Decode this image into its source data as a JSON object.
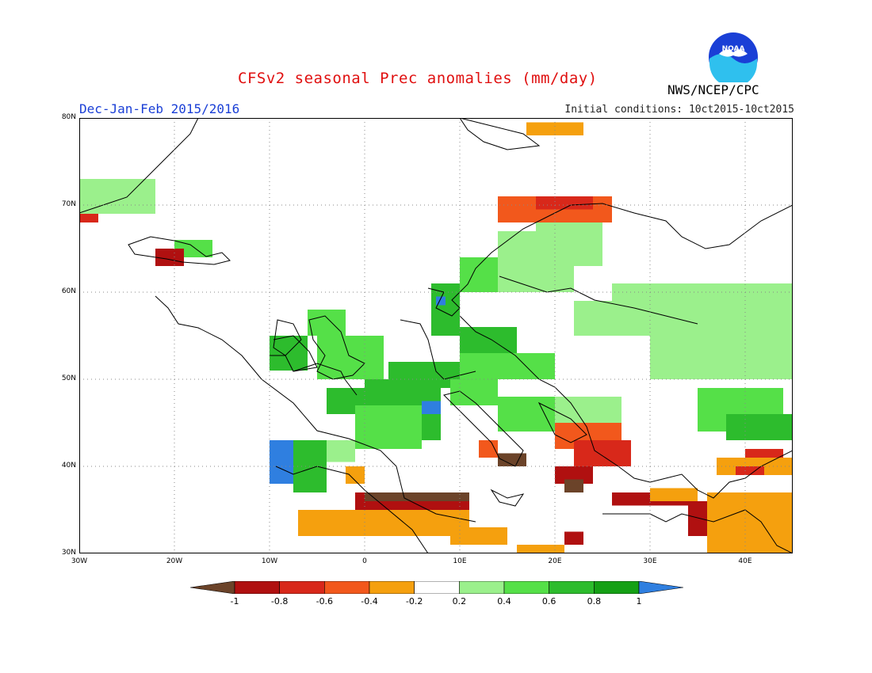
{
  "title": "CFSv2 seasonal Prec anomalies (mm/day)",
  "period": "Dec-Jan-Feb 2015/2016",
  "initial_conditions": "Initial conditions: 10ct2015-10ct2015",
  "agency": "NWS/NCEP/CPC",
  "logo_text": "NOAA",
  "map": {
    "lon_range": [
      -30,
      45
    ],
    "lat_range": [
      30,
      80
    ],
    "lat_labels": [
      {
        "value": 80,
        "text": "80N"
      },
      {
        "value": 70,
        "text": "70N"
      },
      {
        "value": 60,
        "text": "60N"
      },
      {
        "value": 50,
        "text": "50N"
      },
      {
        "value": 40,
        "text": "40N"
      },
      {
        "value": 30,
        "text": "30N"
      }
    ],
    "lon_labels": [
      {
        "value": -30,
        "text": "30W"
      },
      {
        "value": -20,
        "text": "20W"
      },
      {
        "value": -10,
        "text": "10W"
      },
      {
        "value": 0,
        "text": "0"
      },
      {
        "value": 10,
        "text": "10E"
      },
      {
        "value": 20,
        "text": "20E"
      },
      {
        "value": 30,
        "text": "30E"
      },
      {
        "value": 40,
        "text": "40E"
      }
    ]
  },
  "colorbar": {
    "labels": [
      "-1",
      "-0.8",
      "-0.6",
      "-0.4",
      "-0.2",
      "0.2",
      "0.4",
      "0.6",
      "0.8",
      "1"
    ],
    "colors": [
      "#6b4329",
      "#b01010",
      "#d8281a",
      "#f2581c",
      "#f5a00e",
      "#ffffff",
      "#9bf08c",
      "#55e048",
      "#2dbc2d",
      "#15a015",
      "#2f7fe0"
    ]
  },
  "chart_data": {
    "type": "heatmap",
    "variable": "Prec anomalies (mm/day)",
    "regions": [
      {
        "lon": [
          -10,
          -7.5
        ],
        "lat": [
          38,
          43
        ],
        "value": 1.1
      },
      {
        "lon": [
          -7.5,
          -4
        ],
        "lat": [
          37,
          43
        ],
        "value": 0.7
      },
      {
        "lon": [
          -4,
          -1
        ],
        "lat": [
          40.5,
          43
        ],
        "value": 0.3
      },
      {
        "lon": [
          -4,
          0
        ],
        "lat": [
          46,
          49
        ],
        "value": 0.6
      },
      {
        "lon": [
          0,
          8
        ],
        "lat": [
          43,
          50
        ],
        "value": 0.7
      },
      {
        "lon": [
          -1,
          6
        ],
        "lat": [
          42,
          47
        ],
        "value": 0.5
      },
      {
        "lon": [
          2.5,
          10
        ],
        "lat": [
          49,
          52
        ],
        "value": 0.6
      },
      {
        "lon": [
          6,
          8
        ],
        "lat": [
          46,
          47.5
        ],
        "value": 1.1
      },
      {
        "lon": [
          -5,
          2
        ],
        "lat": [
          50,
          55
        ],
        "value": 0.5
      },
      {
        "lon": [
          -10,
          -6
        ],
        "lat": [
          51,
          55
        ],
        "value": 0.6
      },
      {
        "lon": [
          -6,
          -2
        ],
        "lat": [
          55,
          58
        ],
        "value": 0.5
      },
      {
        "lon": [
          7,
          10
        ],
        "lat": [
          55,
          61
        ],
        "value": 0.6
      },
      {
        "lon": [
          7.5,
          8.5
        ],
        "lat": [
          58.5,
          59.5
        ],
        "value": 1.1
      },
      {
        "lon": [
          10,
          14
        ],
        "lat": [
          60,
          64
        ],
        "value": 0.5
      },
      {
        "lon": [
          10,
          16
        ],
        "lat": [
          53,
          56
        ],
        "value": 0.6
      },
      {
        "lon": [
          14,
          22
        ],
        "lat": [
          60,
          67
        ],
        "value": 0.3
      },
      {
        "lon": [
          18,
          25
        ],
        "lat": [
          63,
          68
        ],
        "value": 0.3
      },
      {
        "lon": [
          22,
          35
        ],
        "lat": [
          55,
          59
        ],
        "value": 0.3
      },
      {
        "lon": [
          26,
          45
        ],
        "lat": [
          57,
          61
        ],
        "value": 0.3
      },
      {
        "lon": [
          10,
          20
        ],
        "lat": [
          50,
          53
        ],
        "value": 0.5
      },
      {
        "lon": [
          9,
          14
        ],
        "lat": [
          47,
          50
        ],
        "value": 0.5
      },
      {
        "lon": [
          14,
          20
        ],
        "lat": [
          44,
          48
        ],
        "value": 0.5
      },
      {
        "lon": [
          20,
          27
        ],
        "lat": [
          44,
          48
        ],
        "value": 0.3
      },
      {
        "lon": [
          30,
          45
        ],
        "lat": [
          50,
          58
        ],
        "value": 0.3
      },
      {
        "lon": [
          35,
          44
        ],
        "lat": [
          44,
          49
        ],
        "value": 0.5
      },
      {
        "lon": [
          38,
          45
        ],
        "lat": [
          43,
          46
        ],
        "value": 0.7
      },
      {
        "lon": [
          -30,
          -22
        ],
        "lat": [
          69,
          73
        ],
        "value": 0.3
      },
      {
        "lon": [
          -20,
          -16
        ],
        "lat": [
          64,
          66
        ],
        "value": 0.5
      },
      {
        "lon": [
          -22,
          -19
        ],
        "lat": [
          63,
          65
        ],
        "value": -0.9
      },
      {
        "lon": [
          -30,
          -28
        ],
        "lat": [
          68,
          69
        ],
        "value": -0.6
      },
      {
        "lon": [
          14,
          26
        ],
        "lat": [
          68,
          71
        ],
        "value": -0.5
      },
      {
        "lon": [
          18,
          24
        ],
        "lat": [
          69.5,
          71
        ],
        "value": -0.7
      },
      {
        "lon": [
          20,
          27
        ],
        "lat": [
          42,
          45
        ],
        "value": -0.4
      },
      {
        "lon": [
          22,
          28
        ],
        "lat": [
          40,
          43
        ],
        "value": -0.7
      },
      {
        "lon": [
          20,
          24
        ],
        "lat": [
          38,
          40
        ],
        "value": -0.8
      },
      {
        "lon": [
          21,
          23
        ],
        "lat": [
          37,
          38.5
        ],
        "value": -1.0
      },
      {
        "lon": [
          14,
          17
        ],
        "lat": [
          40,
          41.5
        ],
        "value": -1.0
      },
      {
        "lon": [
          12,
          14
        ],
        "lat": [
          41,
          43
        ],
        "value": -0.4
      },
      {
        "lon": [
          -1,
          11
        ],
        "lat": [
          35,
          37
        ],
        "value": -0.8
      },
      {
        "lon": [
          0,
          11
        ],
        "lat": [
          36,
          37
        ],
        "value": -1.0
      },
      {
        "lon": [
          -7,
          10
        ],
        "lat": [
          32,
          35
        ],
        "value": -0.3
      },
      {
        "lon": [
          9,
          11
        ],
        "lat": [
          31,
          35
        ],
        "value": -0.3
      },
      {
        "lon": [
          11,
          15
        ],
        "lat": [
          31,
          33
        ],
        "value": -0.3
      },
      {
        "lon": [
          16,
          21
        ],
        "lat": [
          30,
          31
        ],
        "value": -0.3
      },
      {
        "lon": [
          21,
          23
        ],
        "lat": [
          31,
          32.5
        ],
        "value": -0.8
      },
      {
        "lon": [
          26,
          34
        ],
        "lat": [
          35.5,
          37
        ],
        "value": -0.8
      },
      {
        "lon": [
          30,
          35
        ],
        "lat": [
          36,
          37.5
        ],
        "value": -0.3
      },
      {
        "lon": [
          34,
          36
        ],
        "lat": [
          32,
          36
        ],
        "value": -0.8
      },
      {
        "lon": [
          36,
          45
        ],
        "lat": [
          30,
          37
        ],
        "value": -0.3
      },
      {
        "lon": [
          37,
          45
        ],
        "lat": [
          39,
          41
        ],
        "value": -0.3
      },
      {
        "lon": [
          39,
          42
        ],
        "lat": [
          39,
          40
        ],
        "value": -0.7
      },
      {
        "lon": [
          40,
          44
        ],
        "lat": [
          41,
          42
        ],
        "value": -0.7
      },
      {
        "lon": [
          -2,
          0
        ],
        "lat": [
          38,
          40
        ],
        "value": -0.3
      },
      {
        "lon": [
          17,
          23
        ],
        "lat": [
          78,
          79.5
        ],
        "value": -0.3
      }
    ]
  }
}
